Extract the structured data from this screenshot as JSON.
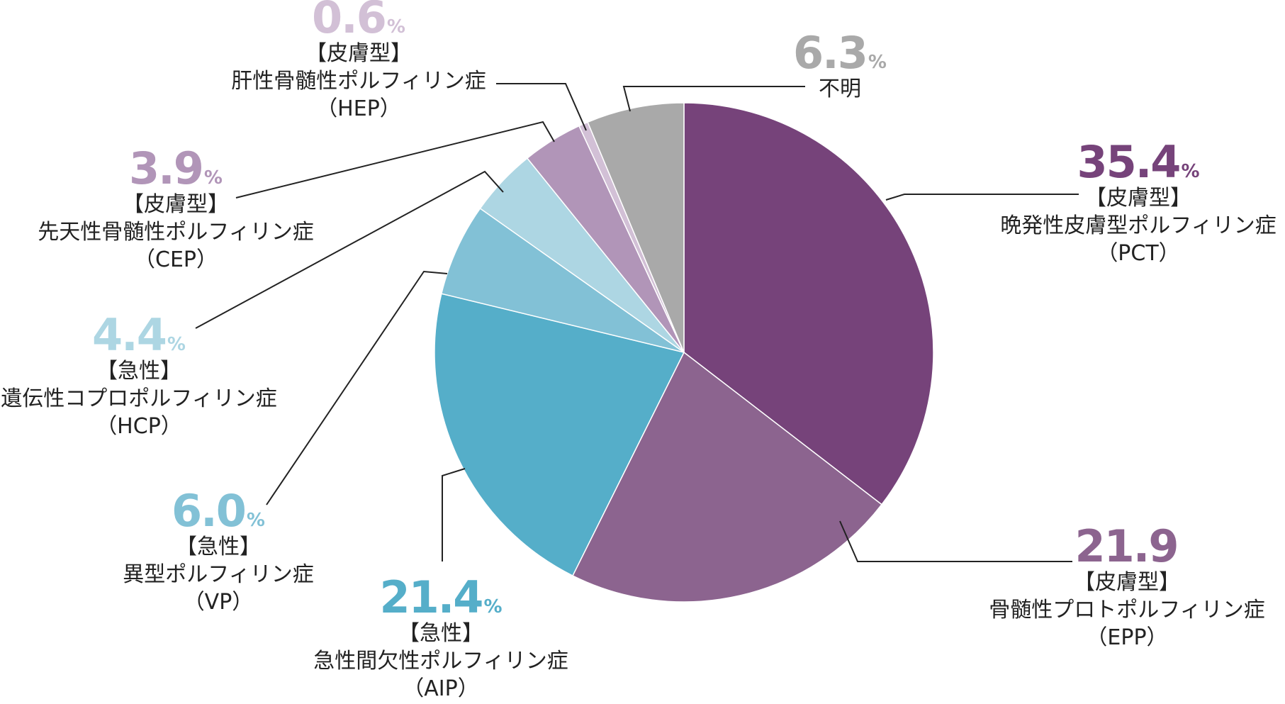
{
  "chart_data": {
    "type": "pie",
    "start": "12 o'clock, clockwise",
    "slices": [
      {
        "id": "pct",
        "value": 35.4,
        "value_text": "35.4",
        "unit": "%",
        "color": "#76437a",
        "lines": [
          "【皮膚型】",
          "晩発性皮膚型ポルフィリン症",
          "（PCT）"
        ]
      },
      {
        "id": "epp",
        "value": 21.9,
        "value_text": "21.9",
        "unit": "",
        "color": "#8c648f",
        "lines": [
          "【皮膚型】",
          "骨髄性プロトポルフィリン症",
          "（EPP）"
        ]
      },
      {
        "id": "aip",
        "value": 21.4,
        "value_text": "21.4",
        "unit": "%",
        "color": "#55aec9",
        "lines": [
          "【急性】",
          "急性間欠性ポルフィリン症",
          "（AIP）"
        ]
      },
      {
        "id": "vp",
        "value": 6.0,
        "value_text": "6.0",
        "unit": "%",
        "color": "#82c1d6",
        "lines": [
          "【急性】",
          "異型ポルフィリン症",
          "（VP）"
        ]
      },
      {
        "id": "hcp",
        "value": 4.4,
        "value_text": "4.4",
        "unit": "%",
        "color": "#add6e3",
        "lines": [
          "【急性】",
          "遺伝性コプロポルフィリン症",
          "（HCP）"
        ]
      },
      {
        "id": "cep",
        "value": 3.9,
        "value_text": "3.9",
        "unit": "%",
        "color": "#b195b8",
        "lines": [
          "【皮膚型】",
          "先天性骨髄性ポルフィリン症",
          "（CEP）"
        ]
      },
      {
        "id": "hep",
        "value": 0.6,
        "value_text": "0.6",
        "unit": "%",
        "color": "#d2c0d6",
        "lines": [
          "【皮膚型】",
          "肝性骨髄性ポルフィリン症",
          "（HEP）"
        ]
      },
      {
        "id": "unknown",
        "value": 6.3,
        "value_text": "6.3",
        "unit": "%",
        "color": "#a9a9a9",
        "lines": [
          "不明"
        ]
      }
    ],
    "label_number_colors": {
      "pct": "#76437a",
      "epp": "#8c648f",
      "aip": "#55aec9",
      "vp": "#82c1d6",
      "hcp": "#add6e3",
      "cep": "#b195b8",
      "hep": "#d2c0d6",
      "unknown": "#a9a9a9"
    }
  }
}
